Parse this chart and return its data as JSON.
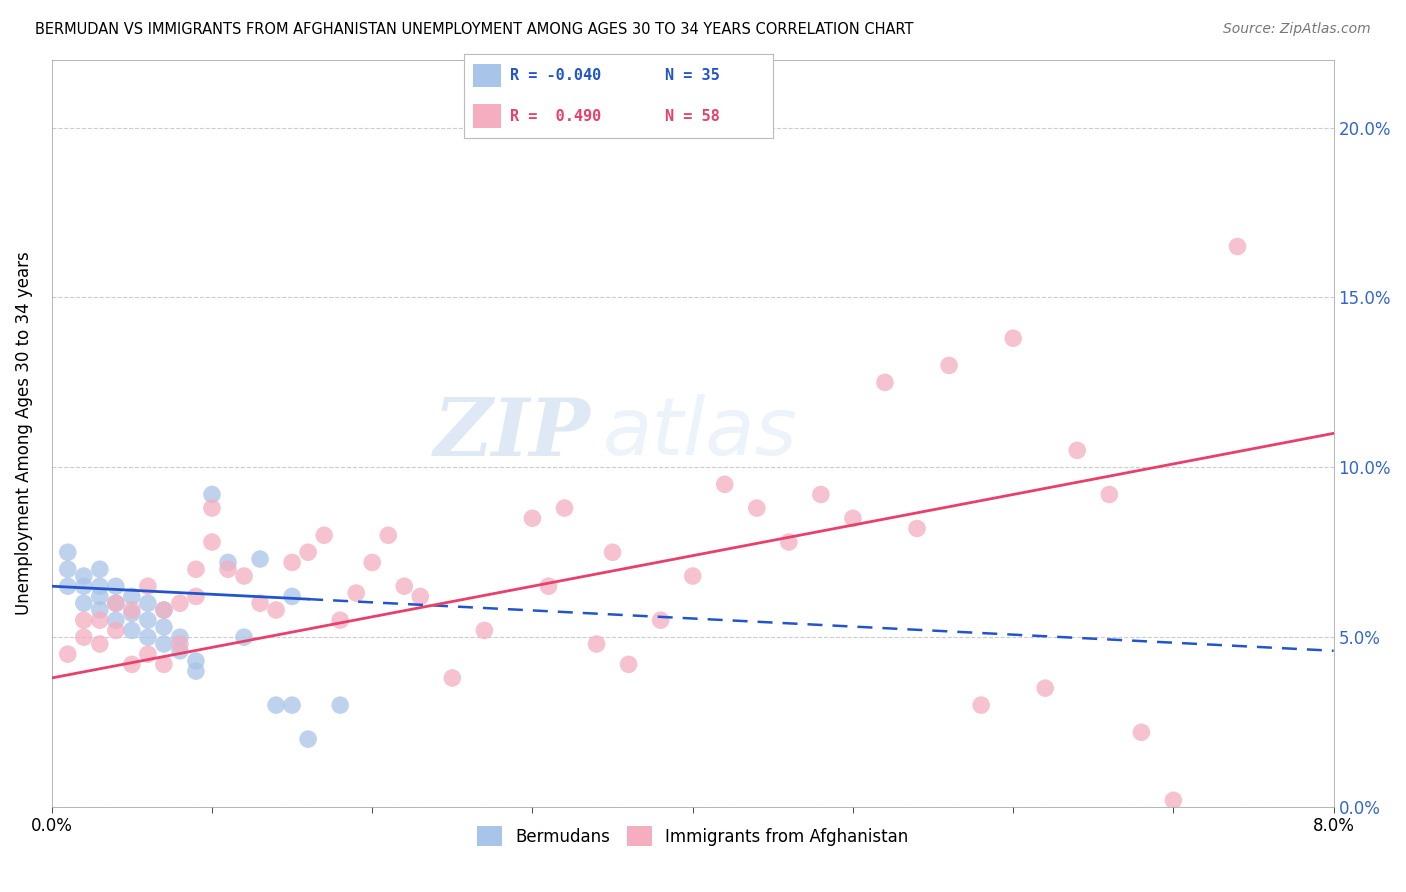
{
  "title": "BERMUDAN VS IMMIGRANTS FROM AFGHANISTAN UNEMPLOYMENT AMONG AGES 30 TO 34 YEARS CORRELATION CHART",
  "source": "Source: ZipAtlas.com",
  "ylabel": "Unemployment Among Ages 30 to 34 years",
  "xlim": [
    0.0,
    0.08
  ],
  "ylim": [
    0.0,
    0.22
  ],
  "xticks": [
    0.0,
    0.01,
    0.02,
    0.03,
    0.04,
    0.05,
    0.06,
    0.07,
    0.08
  ],
  "xtick_labels": [
    "0.0%",
    "",
    "",
    "",
    "",
    "",
    "",
    "",
    "8.0%"
  ],
  "yticks": [
    0.0,
    0.05,
    0.1,
    0.15,
    0.2
  ],
  "ytick_labels": [
    "",
    "",
    "",
    "",
    ""
  ],
  "right_ytick_labels": [
    "0.0%",
    "5.0%",
    "10.0%",
    "15.0%",
    "20.0%"
  ],
  "blue_R": "-0.040",
  "blue_N": "35",
  "pink_R": "0.490",
  "pink_N": "58",
  "blue_color": "#a8c4e8",
  "pink_color": "#f4aec0",
  "blue_line_color": "#2255cc",
  "pink_line_color": "#e8406a",
  "watermark_zip": "ZIP",
  "watermark_atlas": "atlas",
  "legend_label_blue": "Bermudans",
  "legend_label_pink": "Immigrants from Afghanistan",
  "blue_x": [
    0.001,
    0.001,
    0.001,
    0.002,
    0.002,
    0.002,
    0.003,
    0.003,
    0.003,
    0.003,
    0.004,
    0.004,
    0.004,
    0.005,
    0.005,
    0.005,
    0.006,
    0.006,
    0.006,
    0.007,
    0.007,
    0.007,
    0.008,
    0.008,
    0.009,
    0.009,
    0.01,
    0.011,
    0.012,
    0.013,
    0.014,
    0.015,
    0.015,
    0.016,
    0.018
  ],
  "blue_y": [
    0.065,
    0.07,
    0.075,
    0.06,
    0.065,
    0.068,
    0.058,
    0.062,
    0.065,
    0.07,
    0.055,
    0.06,
    0.065,
    0.052,
    0.057,
    0.062,
    0.05,
    0.055,
    0.06,
    0.048,
    0.053,
    0.058,
    0.046,
    0.05,
    0.043,
    0.04,
    0.092,
    0.072,
    0.05,
    0.073,
    0.03,
    0.062,
    0.03,
    0.02,
    0.03
  ],
  "pink_x": [
    0.001,
    0.002,
    0.002,
    0.003,
    0.003,
    0.004,
    0.004,
    0.005,
    0.005,
    0.006,
    0.006,
    0.007,
    0.007,
    0.008,
    0.008,
    0.009,
    0.009,
    0.01,
    0.01,
    0.011,
    0.012,
    0.013,
    0.014,
    0.015,
    0.016,
    0.017,
    0.018,
    0.019,
    0.02,
    0.021,
    0.022,
    0.023,
    0.025,
    0.027,
    0.03,
    0.031,
    0.032,
    0.034,
    0.035,
    0.036,
    0.038,
    0.04,
    0.042,
    0.044,
    0.046,
    0.048,
    0.05,
    0.052,
    0.054,
    0.056,
    0.058,
    0.06,
    0.062,
    0.064,
    0.066,
    0.068,
    0.07,
    0.074
  ],
  "pink_y": [
    0.045,
    0.05,
    0.055,
    0.048,
    0.055,
    0.052,
    0.06,
    0.042,
    0.058,
    0.045,
    0.065,
    0.042,
    0.058,
    0.048,
    0.06,
    0.062,
    0.07,
    0.078,
    0.088,
    0.07,
    0.068,
    0.06,
    0.058,
    0.072,
    0.075,
    0.08,
    0.055,
    0.063,
    0.072,
    0.08,
    0.065,
    0.062,
    0.038,
    0.052,
    0.085,
    0.065,
    0.088,
    0.048,
    0.075,
    0.042,
    0.055,
    0.068,
    0.095,
    0.088,
    0.078,
    0.092,
    0.085,
    0.125,
    0.082,
    0.13,
    0.03,
    0.138,
    0.035,
    0.105,
    0.092,
    0.022,
    0.002,
    0.165
  ],
  "blue_trend_x0": 0.0,
  "blue_trend_y0": 0.065,
  "blue_trend_x1": 0.08,
  "blue_trend_y1": 0.046,
  "pink_trend_x0": 0.0,
  "pink_trend_y0": 0.038,
  "pink_trend_x1": 0.08,
  "pink_trend_y1": 0.11
}
